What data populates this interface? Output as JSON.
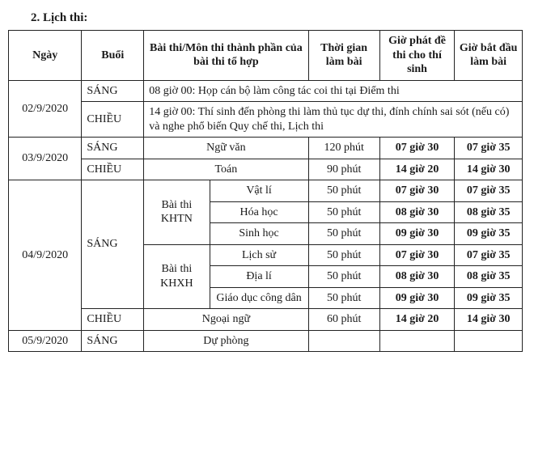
{
  "title": "2. Lịch thi:",
  "headers": {
    "ngay": "Ngày",
    "buoi": "Buổi",
    "mon": "Bài thi/Môn thi thành phần của bài thi tổ hợp",
    "thoi": "Thời gian làm bài",
    "phat": "Giờ phát đề thi cho thí sinh",
    "bat": "Giờ bắt đầu làm bài"
  },
  "d1": {
    "date": "02/9/2020",
    "sang": "SÁNG",
    "sang_note": "08 giờ 00: Họp cán bộ làm công tác coi thi tại Điểm thi",
    "chieu": "CHIỀU",
    "chieu_note": "14 giờ 00: Thí sinh đến phòng thi làm thủ tục dự thi, đính chính sai sót (nếu có) và nghe phổ biến Quy chế thi, Lịch thi"
  },
  "d2": {
    "date": "03/9/2020",
    "sang": "SÁNG",
    "sang_mon": "Ngữ văn",
    "sang_thoi": "120 phút",
    "sang_phat": "07 giờ 30",
    "sang_bat": "07 giờ 35",
    "chieu": "CHIỀU",
    "chieu_mon": "Toán",
    "chieu_thoi": "90 phút",
    "chieu_phat": "14 giờ 20",
    "chieu_bat": "14 giờ 30"
  },
  "d3": {
    "date": "04/9/2020",
    "sang": "SÁNG",
    "khtn": "Bài thi KHTN",
    "khxh": "Bài thi KHXH",
    "r1": {
      "mon": "Vật lí",
      "thoi": "50 phút",
      "phat": "07 giờ 30",
      "bat": "07 giờ 35"
    },
    "r2": {
      "mon": "Hóa học",
      "thoi": "50 phút",
      "phat": "08 giờ 30",
      "bat": "08 giờ 35"
    },
    "r3": {
      "mon": "Sinh học",
      "thoi": "50 phút",
      "phat": "09 giờ 30",
      "bat": "09 giờ 35"
    },
    "r4": {
      "mon": "Lịch sử",
      "thoi": "50 phút",
      "phat": "07 giờ 30",
      "bat": "07 giờ 35"
    },
    "r5": {
      "mon": "Địa lí",
      "thoi": "50 phút",
      "phat": "08 giờ 30",
      "bat": "08 giờ 35"
    },
    "r6": {
      "mon": "Giáo dục công dân",
      "thoi": "50 phút",
      "phat": "09 giờ 30",
      "bat": "09 giờ 35"
    },
    "chieu": "CHIỀU",
    "chieu_mon": "Ngoại ngữ",
    "chieu_thoi": "60 phút",
    "chieu_phat": "14 giờ 20",
    "chieu_bat": "14 giờ 30"
  },
  "d4": {
    "date": "05/9/2020",
    "sang": "SÁNG",
    "note": "Dự phòng"
  }
}
